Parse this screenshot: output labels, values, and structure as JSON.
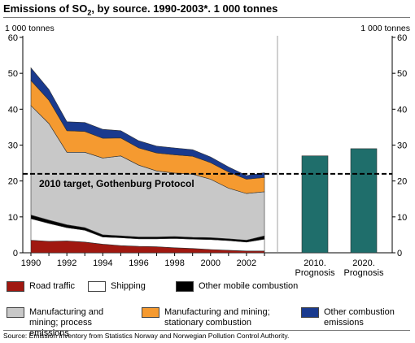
{
  "header": {
    "title_main": "Emissions of SO",
    "title_sub": "2",
    "title_rest": ", by source. 1990-2003*. 1 000 tonnes"
  },
  "source": "Source: Emission inventory from Statistics Norway and Norwegian Pollution Control Authority.",
  "chart_data": {
    "type": "area",
    "title": "Emissions of SO2, by source. 1990-2003*. 1 000 tonnes",
    "ylabel_left": "1 000 tonnes",
    "ylabel_right": "1 000 tonnes",
    "ylim": [
      0,
      60
    ],
    "yticks": [
      0,
      10,
      20,
      30,
      40,
      50,
      60
    ],
    "x": [
      1990,
      1991,
      1992,
      1993,
      1994,
      1995,
      1996,
      1997,
      1998,
      1999,
      2000,
      2001,
      2002,
      2003
    ],
    "xtick_labels": [
      "1990",
      "1992",
      "1994",
      "1996",
      "1998",
      "2000",
      "2002"
    ],
    "series": [
      {
        "name": "Road traffic",
        "color": "#a01810",
        "values": [
          3.5,
          3.2,
          3.3,
          3.0,
          2.4,
          2.0,
          1.8,
          1.7,
          1.4,
          1.2,
          0.9,
          0.7,
          0.5,
          0.5
        ]
      },
      {
        "name": "Shipping",
        "color": "#ffffff",
        "values": [
          6.0,
          5.0,
          3.7,
          3.3,
          2.0,
          2.2,
          2.1,
          2.2,
          2.6,
          2.6,
          2.8,
          2.7,
          2.5,
          3.3
        ]
      },
      {
        "name": "Other mobile combustion",
        "color": "#000000",
        "values": [
          1.0,
          0.9,
          0.8,
          0.7,
          0.6,
          0.5,
          0.5,
          0.5,
          0.5,
          0.5,
          0.5,
          0.5,
          0.5,
          0.9
        ]
      },
      {
        "name": "Manufacturing and mining; process emissions",
        "color": "#c8c8c8",
        "values": [
          30.5,
          26.9,
          20.2,
          21.0,
          21.4,
          22.3,
          20.0,
          18.4,
          17.7,
          17.6,
          16.3,
          14.1,
          13.0,
          12.3
        ]
      },
      {
        "name": "Manufacturing and mining; stationary combustion",
        "color": "#f59a30",
        "values": [
          7.0,
          6.5,
          6.0,
          5.8,
          5.5,
          5.0,
          4.8,
          5.0,
          5.1,
          5.0,
          4.6,
          4.5,
          4.0,
          4.0
        ]
      },
      {
        "name": "Other combustion emissions",
        "color": "#1a3a8e",
        "values": [
          3.5,
          3.0,
          2.5,
          2.5,
          2.5,
          2.0,
          2.0,
          1.9,
          1.9,
          1.8,
          1.6,
          1.4,
          1.0,
          1.3
        ]
      }
    ],
    "target_line": {
      "value": 22,
      "label": "2010 target, Gothenburg Protocol"
    },
    "prognosis": {
      "color": "#1f6e6b",
      "categories": [
        "2010. Prognosis",
        "2020. Prognosis"
      ],
      "values": [
        27,
        29
      ]
    },
    "legend_position": "bottom",
    "grid": false
  }
}
